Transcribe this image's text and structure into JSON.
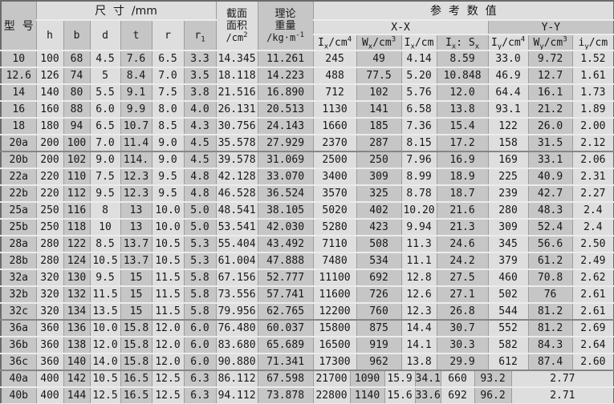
{
  "colors": {
    "cell_light": "#dedede",
    "cell_dark": "#c6c6c6",
    "outer_border": "#6b6b6b",
    "row_line_light": "#ececec",
    "row_line_heavy": "#868686",
    "grid_line": "#9c9c9c",
    "text": "#161616"
  },
  "table": {
    "header": {
      "model": "型  号",
      "size_group": "尺  寸  /mm",
      "area": {
        "l1": "截面",
        "l2": "面积",
        "unit": "/cm",
        "sup": "2"
      },
      "weight": {
        "l1": "理论",
        "l2": "重量",
        "unit": "/kg·m",
        "sup": "-1"
      },
      "ref_group": "参  考  数  值",
      "xx": "X-X",
      "yy": "Y-Y",
      "dims": {
        "h": "h",
        "b": "b",
        "d": "d",
        "t": "t",
        "r": "r",
        "r1_base": "r",
        "r1_sub": "1"
      },
      "subcols": [
        {
          "base": "I",
          "sub": "x",
          "unit": "/cm",
          "sup": "4"
        },
        {
          "base": "W",
          "sub": "x",
          "unit": "/cm",
          "sup": "3"
        },
        {
          "base": "I",
          "sub": "x",
          "unit": "/cm",
          "sup": ""
        },
        {
          "base": "I",
          "sub": "x",
          "mid": ": S",
          "sub2": "x"
        },
        {
          "base": "I",
          "sub": "y",
          "unit": "/cm",
          "sup": "4"
        },
        {
          "base": "W",
          "sub": "y",
          "unit": "/cm",
          "sup": "3"
        },
        {
          "base": "i",
          "sub": "y",
          "unit": "/cm",
          "sup": ""
        }
      ]
    },
    "special_widths": [
      45,
      42,
      37,
      31,
      41,
      45,
      0
    ],
    "rows": [
      {
        "cells": [
          "10",
          "100",
          "68",
          "4.5",
          "7.6",
          "6.5",
          "3.3",
          "14.345",
          "11.261",
          "245",
          "49",
          "4.14",
          "8.59",
          "33.0",
          "9.72",
          "1.52"
        ]
      },
      {
        "cells": [
          "12.6",
          "126",
          "74",
          "5",
          "8.4",
          "7.0",
          "3.5",
          "18.118",
          "14.223",
          "488",
          "77.5",
          "5.20",
          "10.848",
          "46.9",
          "12.7",
          "1.61"
        ]
      },
      {
        "cells": [
          "14",
          "140",
          "80",
          "5.5",
          "9.1",
          "7.5",
          "3.8",
          "21.516",
          "16.890",
          "712",
          "102",
          "5.76",
          "12.0",
          "64.4",
          "16.1",
          "1.73"
        ]
      },
      {
        "cells": [
          "16",
          "160",
          "88",
          "6.0",
          "9.9",
          "8.0",
          "4.0",
          "26.131",
          "20.513",
          "1130",
          "141",
          "6.58",
          "13.8",
          "93.1",
          "21.2",
          "1.89"
        ]
      },
      {
        "cells": [
          "18",
          "180",
          "94",
          "6.5",
          "10.7",
          "8.5",
          "4.3",
          "30.756",
          "24.143",
          "1660",
          "185",
          "7.36",
          "15.4",
          "122",
          "26.0",
          "2.00"
        ]
      },
      {
        "cells": [
          "20a",
          "200",
          "100",
          "7.0",
          "11.4",
          "9.0",
          "4.5",
          "35.578",
          "27.929",
          "2370",
          "287",
          "8.15",
          "17.2",
          "158",
          "31.5",
          "2.12"
        ],
        "heavy": true
      },
      {
        "cells": [
          "20b",
          "200",
          "102",
          "9.0",
          "114.",
          "9.0",
          "4.5",
          "39.578",
          "31.069",
          "2500",
          "250",
          "7.96",
          "16.9",
          "169",
          "33.1",
          "2.06"
        ]
      },
      {
        "cells": [
          "22a",
          "220",
          "110",
          "7.5",
          "12.3",
          "9.5",
          "4.8",
          "42.128",
          "33.070",
          "3400",
          "309",
          "8.99",
          "18.9",
          "225",
          "40.9",
          "2.31"
        ]
      },
      {
        "cells": [
          "22b",
          "220",
          "112",
          "9.5",
          "12.3",
          "9.5",
          "4.8",
          "46.528",
          "36.524",
          "3570",
          "325",
          "8.78",
          "18.7",
          "239",
          "42.7",
          "2.27"
        ]
      },
      {
        "cells": [
          "25a",
          "250",
          "116",
          "8",
          "13",
          "10.0",
          "5.0",
          "48.541",
          "38.105",
          "5020",
          "402",
          "10.20",
          "21.6",
          "280",
          "48.3",
          "2.4"
        ]
      },
      {
        "cells": [
          "25b",
          "250",
          "118",
          "10",
          "13",
          "10.0",
          "5.0",
          "53.541",
          "42.030",
          "5280",
          "423",
          "9.94",
          "21.3",
          "309",
          "52.4",
          "2.4"
        ]
      },
      {
        "cells": [
          "28a",
          "280",
          "122",
          "8.5",
          "13.7",
          "10.5",
          "5.3",
          "55.404",
          "43.492",
          "7110",
          "508",
          "11.3",
          "24.6",
          "345",
          "56.6",
          "2.50"
        ]
      },
      {
        "cells": [
          "28b",
          "280",
          "124",
          "10.5",
          "13.7",
          "10.5",
          "5.3",
          "61.004",
          "47.888",
          "7480",
          "534",
          "11.1",
          "24.2",
          "379",
          "61.2",
          "2.49"
        ]
      },
      {
        "cells": [
          "32a",
          "320",
          "130",
          "9.5",
          "15",
          "11.5",
          "5.8",
          "67.156",
          "52.777",
          "11100",
          "692",
          "12.8",
          "27.5",
          "460",
          "70.8",
          "2.62"
        ]
      },
      {
        "cells": [
          "32b",
          "320",
          "132",
          "11.5",
          "15",
          "11.5",
          "5.8",
          "73.556",
          "57.741",
          "11600",
          "726",
          "12.6",
          "27.1",
          "502",
          "76",
          "2.61"
        ]
      },
      {
        "cells": [
          "32c",
          "320",
          "134",
          "13.5",
          "15",
          "11.5",
          "5.8",
          "79.956",
          "62.765",
          "12200",
          "760",
          "12.3",
          "26.8",
          "544",
          "81.2",
          "2.61"
        ],
        "heavy": true
      },
      {
        "cells": [
          "36a",
          "360",
          "136",
          "10.0",
          "15.8",
          "12.0",
          "6.0",
          "76.480",
          "60.037",
          "15800",
          "875",
          "14.4",
          "30.7",
          "552",
          "81.2",
          "2.69"
        ]
      },
      {
        "cells": [
          "36b",
          "360",
          "138",
          "12.0",
          "15.8",
          "12.0",
          "6.0",
          "83.680",
          "65.689",
          "16500",
          "919",
          "14.1",
          "30.3",
          "582",
          "84.3",
          "2.64"
        ]
      },
      {
        "cells": [
          "36c",
          "360",
          "140",
          "14.0",
          "15.8",
          "12.0",
          "6.0",
          "90.880",
          "71.341",
          "17300",
          "962",
          "13.8",
          "29.9",
          "612",
          "87.4",
          "2.60"
        ],
        "heavy": true
      },
      {
        "cells": [
          "40a",
          "400",
          "142",
          "10.5",
          "16.5",
          "12.5",
          "6.3",
          "86.112",
          "67.598",
          "21700",
          "1090",
          "15.9",
          "34.1",
          "660",
          "93.2",
          "2.77"
        ],
        "special": true
      },
      {
        "cells": [
          "40b",
          "400",
          "144",
          "12.5",
          "16.5",
          "12.5",
          "6.3",
          "94.112",
          "73.878",
          "22800",
          "1140",
          "15.6",
          "33.6",
          "692",
          "96.2",
          "2.71"
        ],
        "special": true
      }
    ]
  }
}
